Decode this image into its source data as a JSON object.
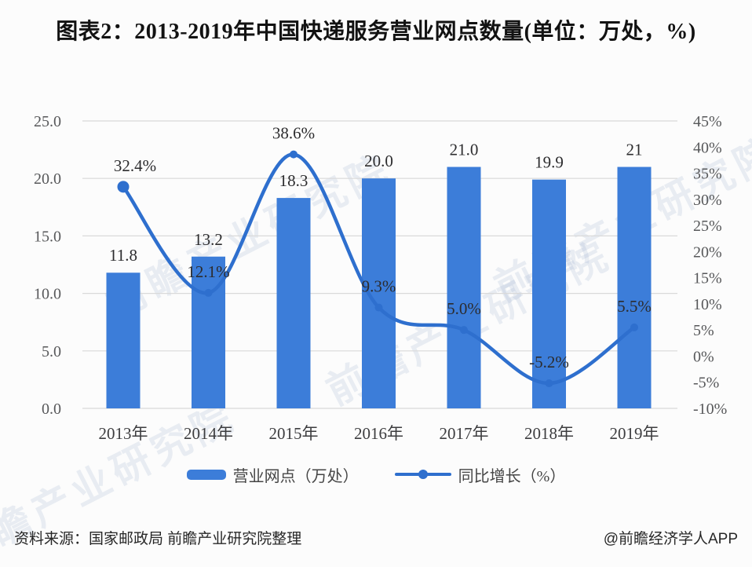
{
  "page": {
    "footer": {
      "source": "资料来源：国家邮政局 前瞻产业研究院整理",
      "credit": "@前瞻经济学人APP"
    },
    "watermark": {
      "text": "前瞻产业研究院"
    }
  },
  "chart_data": {
    "type": "bar",
    "subtype": "bar+line combo, dual axis",
    "title": "图表2：2013-2019年中国快递服务营业网点数量(单位：万处，%)",
    "categories": [
      "2013年",
      "2014年",
      "2015年",
      "2016年",
      "2017年",
      "2018年",
      "2019年"
    ],
    "series": [
      {
        "name": "营业网点（万处）",
        "type": "bar",
        "axis": "left",
        "color": "#3c7dd9",
        "values": [
          11.8,
          13.2,
          18.3,
          20.0,
          21.0,
          19.9,
          21
        ],
        "labels": [
          "11.8",
          "13.2",
          "18.3",
          "20.0",
          "21.0",
          "19.9",
          "21"
        ]
      },
      {
        "name": "同比增长（%）",
        "type": "line",
        "axis": "right",
        "color": "#2e6fce",
        "values": [
          32.4,
          12.1,
          38.6,
          9.3,
          5.0,
          -5.2,
          5.5
        ],
        "labels": [
          "32.4%",
          "12.1%",
          "38.6%",
          "9.3%",
          "5.0%",
          "-5.2%",
          "5.5%"
        ]
      }
    ],
    "left_axis": {
      "min": 0,
      "max": 25,
      "tick_values": [
        25,
        20,
        15,
        10,
        5,
        0
      ],
      "tick_labels": [
        "25.0",
        "20.0",
        "15.0",
        "10.0",
        "5.0",
        "0.0"
      ]
    },
    "right_axis": {
      "min": -10,
      "max": 45,
      "tick_values": [
        45,
        40,
        35,
        30,
        25,
        20,
        15,
        10,
        5,
        0,
        -5,
        -10
      ],
      "tick_labels": [
        "45%",
        "40%",
        "35%",
        "30%",
        "25%",
        "20%",
        "15%",
        "10%",
        "5%",
        "0%",
        "-5%",
        "-10%"
      ]
    },
    "grid": true,
    "gridline_color": "#d9d9d9",
    "legend_position": "bottom"
  }
}
